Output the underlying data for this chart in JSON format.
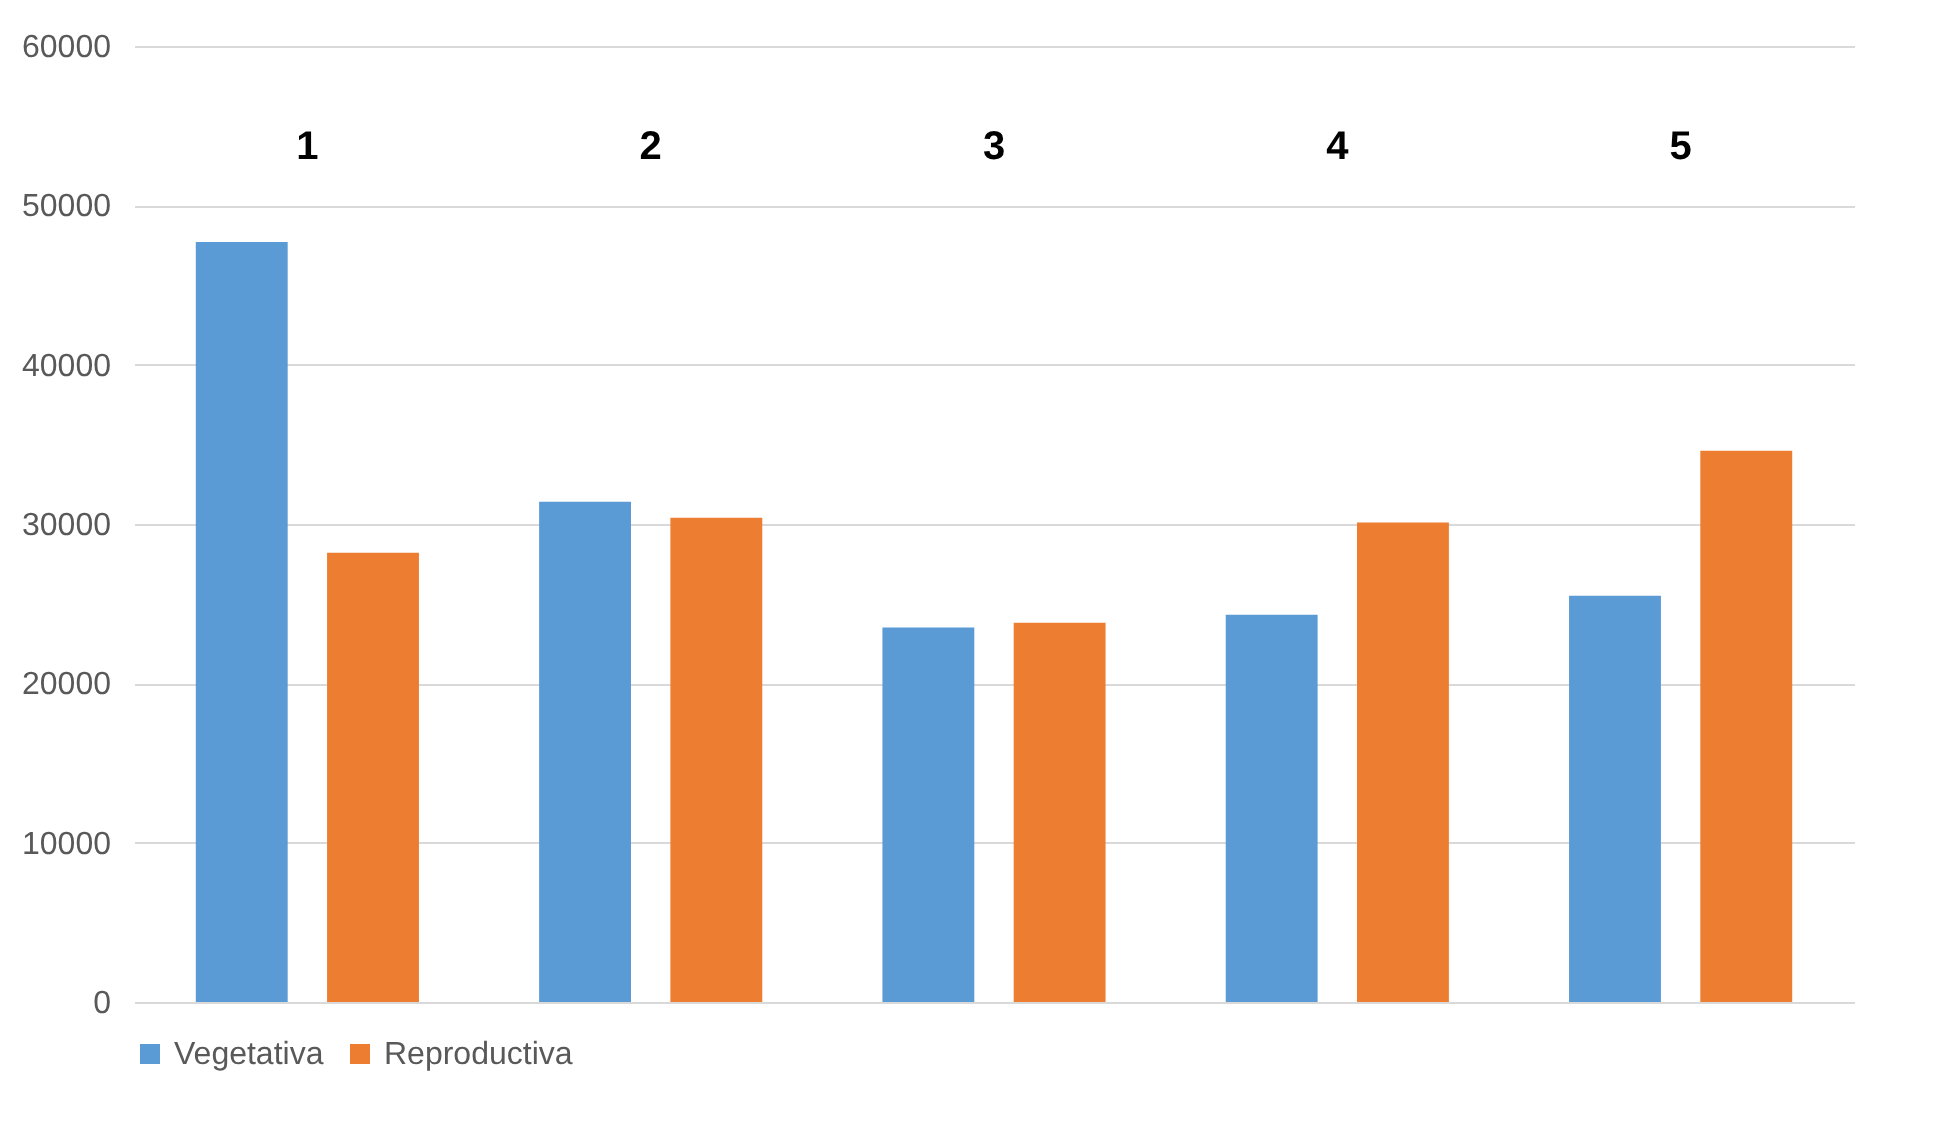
{
  "chart_data": {
    "type": "bar",
    "categories": [
      "1",
      "2",
      "3",
      "4",
      "5"
    ],
    "series": [
      {
        "name": "Vegetativa",
        "color": "#5b9bd5",
        "values": [
          47700,
          31400,
          23500,
          24300,
          25500
        ]
      },
      {
        "name": "Reproductiva",
        "color": "#ed7d31",
        "values": [
          28200,
          30400,
          23800,
          30100,
          34600
        ]
      }
    ],
    "ylim": [
      0,
      60000
    ],
    "yticks": [
      0,
      10000,
      20000,
      30000,
      40000,
      50000,
      60000
    ],
    "grid": "y",
    "legend": "bottom"
  }
}
